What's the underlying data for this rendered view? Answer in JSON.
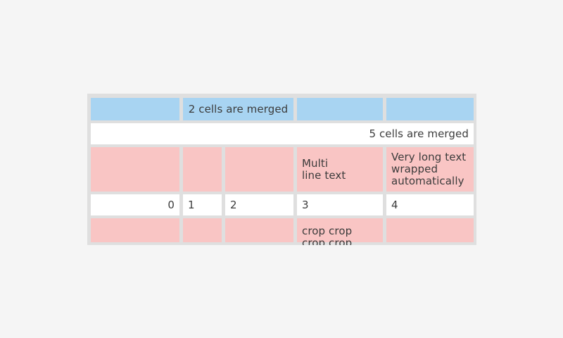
{
  "colors": {
    "page_bg": "#f5f5f5",
    "table_bg": "#dfdfdf",
    "cell_blue": "#a8d4f2",
    "cell_pink": "#f9c5c4",
    "cell_white": "#ffffff",
    "text_color": "#3b3b3b"
  },
  "table": {
    "rows": [
      {
        "style": "blue",
        "cells": [
          {
            "text": ""
          },
          {
            "text": "2 cells are merged",
            "span": 2,
            "align": "center"
          },
          {
            "text": ""
          },
          {
            "text": ""
          }
        ]
      },
      {
        "style": "white",
        "cells": [
          {
            "text": "5 cells are merged",
            "span": 5,
            "align": "right"
          }
        ]
      },
      {
        "style": "pink",
        "cells": [
          {
            "text": ""
          },
          {
            "text": ""
          },
          {
            "text": ""
          },
          {
            "text": "Multi\nline text"
          },
          {
            "text": "Very long text wrapped automatically"
          }
        ]
      },
      {
        "style": "white",
        "cells": [
          {
            "text": "0",
            "align": "right"
          },
          {
            "text": "1"
          },
          {
            "text": "2"
          },
          {
            "text": "3"
          },
          {
            "text": "4"
          }
        ]
      },
      {
        "style": "pink",
        "cells": [
          {
            "text": ""
          },
          {
            "text": ""
          },
          {
            "text": ""
          },
          {
            "text": "crop crop crop crop",
            "cropped": true
          },
          {
            "text": ""
          }
        ]
      }
    ]
  }
}
